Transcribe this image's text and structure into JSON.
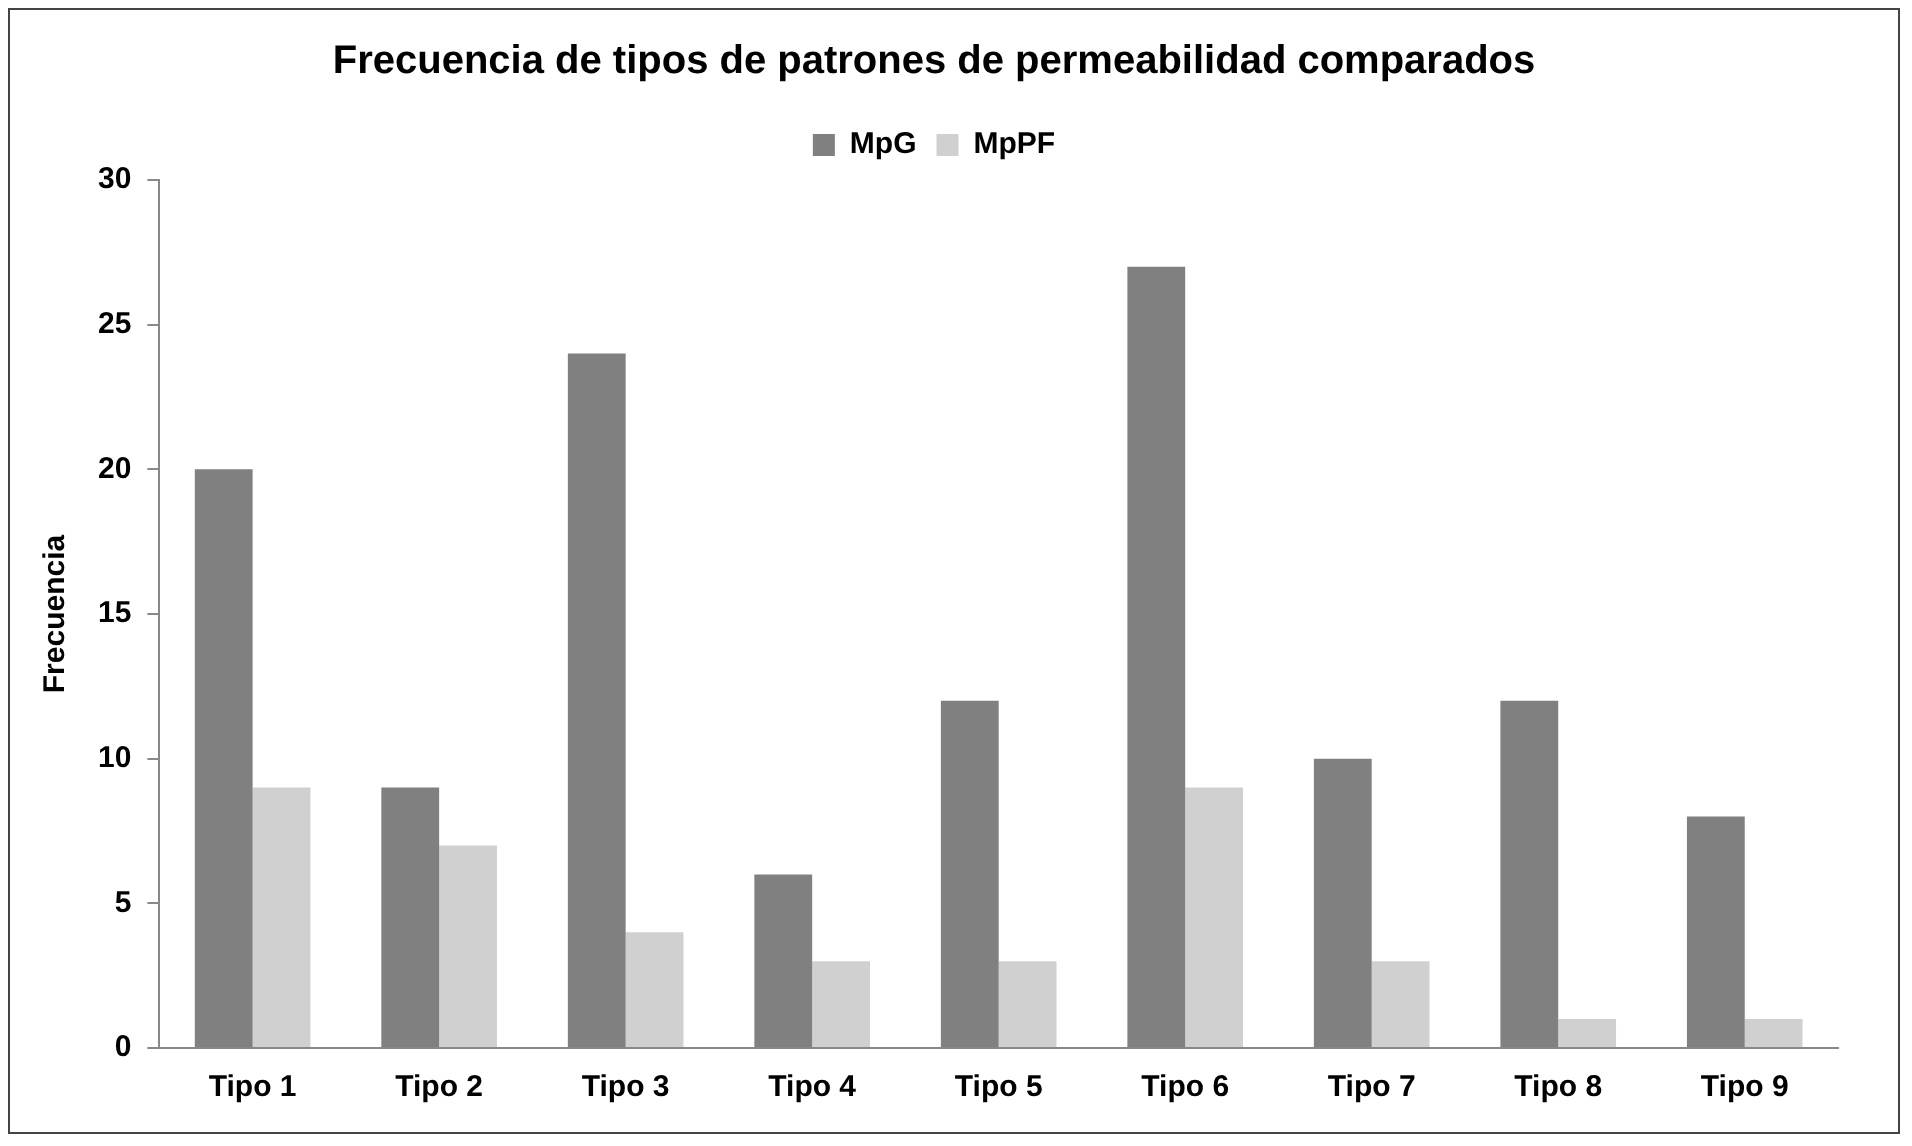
{
  "chart_data": {
    "type": "bar",
    "title": "Frecuencia de tipos de patrones de permeabilidad comparados",
    "ylabel": "Frecuencia",
    "categories": [
      "Tipo 1",
      "Tipo 2",
      "Tipo 3",
      "Tipo 4",
      "Tipo 5",
      "Tipo 6",
      "Tipo 7",
      "Tipo 8",
      "Tipo 9"
    ],
    "series": [
      {
        "name": "MpG",
        "color": "#808080",
        "values": [
          20,
          9,
          24,
          6,
          12,
          27,
          10,
          12,
          8
        ]
      },
      {
        "name": "MpPF",
        "color": "#d0d0d0",
        "values": [
          9,
          7,
          4,
          3,
          3,
          9,
          3,
          1,
          1
        ]
      }
    ],
    "ylim": [
      0,
      30
    ],
    "yticks": [
      0,
      5,
      10,
      15,
      20,
      25,
      30
    ],
    "grid": false,
    "legend": "top"
  }
}
